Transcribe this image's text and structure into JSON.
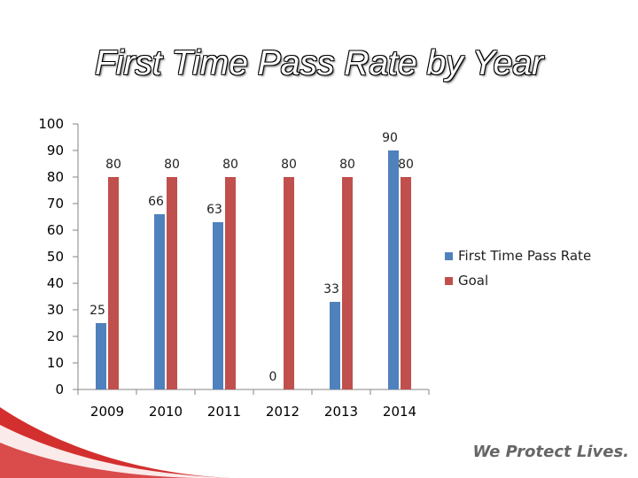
{
  "slide": {
    "tagline": "We Protect Lives."
  },
  "colors": {
    "first_time_pass_rate": "#4f81bd",
    "goal": "#c0504d"
  },
  "chart_data": {
    "type": "bar",
    "title": "First Time Pass Rate by Year",
    "categories": [
      "2009",
      "2010",
      "2011",
      "2012",
      "2013",
      "2014"
    ],
    "series": [
      {
        "name": "First Time Pass Rate",
        "values": [
          25,
          66,
          63,
          0,
          33,
          90
        ]
      },
      {
        "name": "Goal",
        "values": [
          80,
          80,
          80,
          80,
          80,
          80
        ]
      }
    ],
    "ylim": [
      0,
      100
    ],
    "yticks": [
      0,
      10,
      20,
      30,
      40,
      50,
      60,
      70,
      80,
      90,
      100
    ],
    "grid": false,
    "legend": "right",
    "data_labels": true
  }
}
